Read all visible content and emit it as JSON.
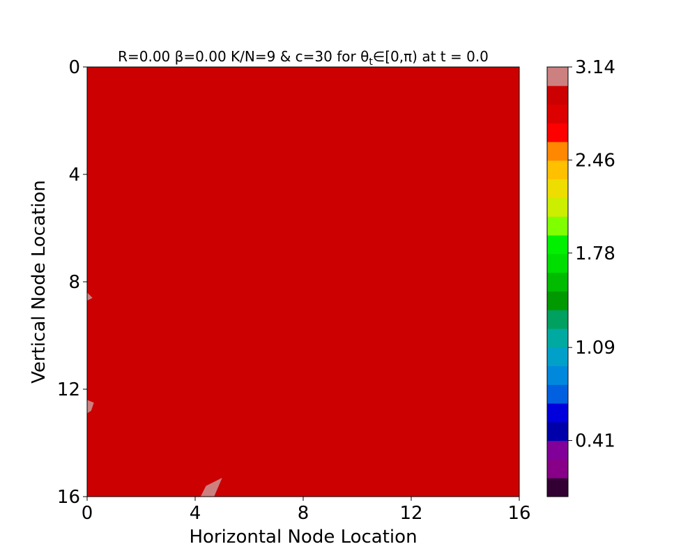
{
  "chart_data": {
    "type": "heatmap",
    "title": "R=0.00 β=0.00 K/N=9 & c=30 for θ",
    "title_subscript": "t",
    "title_rest": "∈[0,π) at t = 0.0",
    "xlabel": "Horizontal Node Location",
    "ylabel": "Vertical Node Location",
    "xlim": [
      0,
      16
    ],
    "ylim": [
      16,
      0
    ],
    "x_ticks": [
      "0",
      "4",
      "8",
      "12",
      "16"
    ],
    "y_ticks": [
      "0",
      "4",
      "8",
      "12",
      "16"
    ],
    "colorbar": {
      "min": 0,
      "max": 3.14,
      "tick_labels": [
        "0.41",
        "1.09",
        "1.78",
        "2.46",
        "3.14"
      ],
      "tick_values": [
        0.41,
        1.09,
        1.78,
        2.46,
        3.14
      ],
      "levels": 23,
      "colors": [
        "#330033",
        "#880088",
        "#800099",
        "#0000aa",
        "#0000dd",
        "#0060e0",
        "#0088dd",
        "#00a0c8",
        "#00aaa0",
        "#00a060",
        "#009900",
        "#00bb00",
        "#00dd00",
        "#00f000",
        "#80ff00",
        "#ccee00",
        "#eedd00",
        "#ffc000",
        "#ff8800",
        "#ff0000",
        "#dd0000",
        "#cc0000",
        "#cc8080"
      ]
    },
    "field": {
      "dominant_value": 2.95,
      "dominant_color": "#cc0000",
      "patch_value": 3.14,
      "patch_color": "#cc8080",
      "patches": [
        [
          [
            0,
            8.4
          ],
          [
            0.2,
            8.6
          ],
          [
            0,
            8.7
          ]
        ],
        [
          [
            0,
            12.4
          ],
          [
            0.25,
            12.5
          ],
          [
            0.15,
            12.8
          ],
          [
            0,
            12.9
          ]
        ],
        [
          [
            4.2,
            16
          ],
          [
            4.4,
            15.6
          ],
          [
            5.0,
            15.3
          ],
          [
            4.7,
            16
          ]
        ]
      ]
    }
  }
}
